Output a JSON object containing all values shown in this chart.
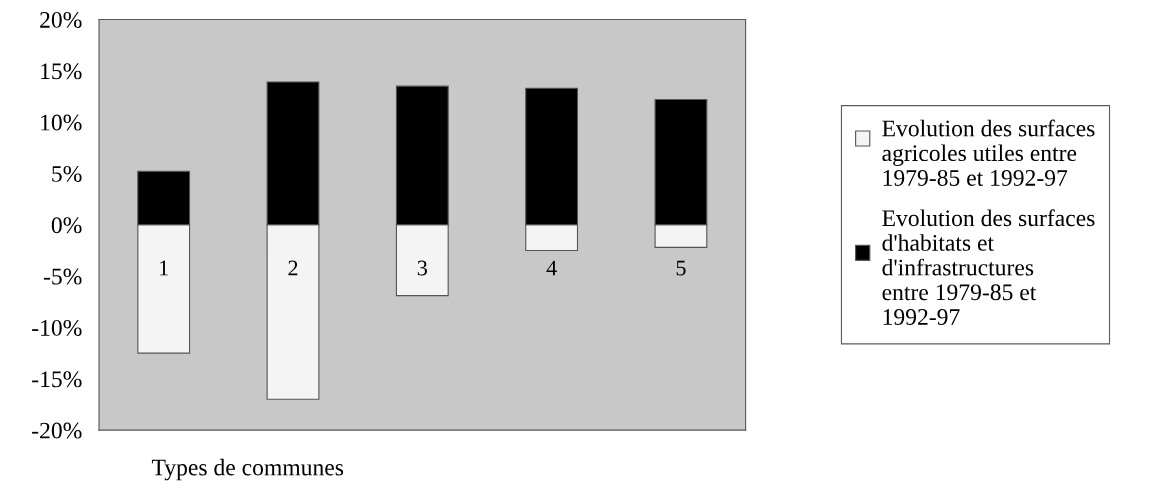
{
  "chart_data": {
    "type": "bar",
    "stacked": true,
    "xlabel": "Types de communes",
    "categories": [
      "1",
      "2",
      "3",
      "4",
      "5"
    ],
    "series": [
      {
        "name": "Evolution des surfaces agricoles utiles entre 1979-85 et 1992-97",
        "color": "#f4f4f4",
        "values": [
          -12.5,
          -17.0,
          -6.9,
          -2.5,
          -2.2
        ]
      },
      {
        "name": "Evolution des surfaces d'habitats et d'infrastructures entre 1979-85 et 1992-97",
        "color": "#000000",
        "values": [
          5.2,
          13.9,
          13.5,
          13.3,
          12.2
        ]
      }
    ],
    "ylim": [
      -20,
      20
    ],
    "yticks": [
      {
        "value": -20,
        "label": "-20%"
      },
      {
        "value": -15,
        "label": "-15%"
      },
      {
        "value": -10,
        "label": "-10%"
      },
      {
        "value": -5,
        "label": "-5%"
      },
      {
        "value": 0,
        "label": "0%"
      },
      {
        "value": 5,
        "label": "5%"
      },
      {
        "value": 10,
        "label": "10%"
      },
      {
        "value": 15,
        "label": "15%"
      },
      {
        "value": 20,
        "label": "20%"
      }
    ],
    "grid": false,
    "legend": "right"
  }
}
